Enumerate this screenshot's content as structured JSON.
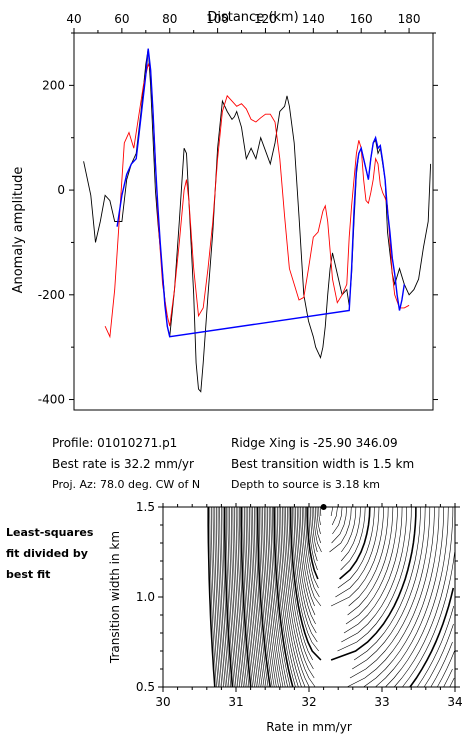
{
  "chart_data": [
    {
      "type": "line",
      "xlabel": "Distance (km)",
      "ylabel": "Anomaly amplitude",
      "xlim": [
        40,
        190
      ],
      "ylim": [
        -420,
        300
      ],
      "xticks": [
        40,
        60,
        80,
        100,
        120,
        140,
        160,
        180
      ],
      "yticks": [
        200,
        0,
        -200,
        -400
      ],
      "grid": false,
      "series": [
        {
          "color": "#000000",
          "x": [
            44,
            47,
            49,
            51,
            53,
            55,
            57,
            60,
            62,
            64,
            66,
            68,
            70,
            71,
            72,
            73,
            74,
            75,
            76,
            77,
            78,
            79,
            80,
            82,
            84,
            86,
            87,
            88,
            89,
            90,
            91,
            92,
            93,
            94,
            96,
            98,
            100,
            102,
            104,
            106,
            107,
            108,
            110,
            112,
            114,
            116,
            118,
            120,
            122,
            124,
            126,
            128,
            129,
            130,
            132,
            134,
            136,
            138,
            140,
            141,
            142,
            143,
            144,
            145,
            146,
            147,
            148,
            150,
            152,
            154,
            155,
            156,
            157,
            158,
            159,
            160,
            161,
            162,
            163,
            164,
            165,
            166,
            167,
            168,
            169,
            170,
            171,
            172,
            173,
            174,
            176,
            178,
            180,
            182,
            184,
            186,
            188,
            189
          ],
          "y": [
            55,
            -10,
            -100,
            -60,
            -10,
            -20,
            -60,
            -60,
            20,
            50,
            70,
            150,
            240,
            270,
            200,
            100,
            0,
            -60,
            -110,
            -160,
            -210,
            -260,
            -280,
            -190,
            -60,
            80,
            70,
            -20,
            -110,
            -200,
            -330,
            -380,
            -385,
            -330,
            -200,
            -80,
            80,
            170,
            150,
            135,
            140,
            150,
            120,
            60,
            80,
            60,
            100,
            75,
            50,
            90,
            150,
            160,
            180,
            160,
            90,
            -50,
            -200,
            -250,
            -280,
            -300,
            -310,
            -320,
            -300,
            -260,
            -200,
            -150,
            -120,
            -160,
            -200,
            -190,
            -220,
            -160,
            -60,
            30,
            70,
            80,
            60,
            40,
            20,
            60,
            90,
            95,
            70,
            80,
            50,
            20,
            -80,
            -120,
            -160,
            -180,
            -150,
            -180,
            -200,
            -190,
            -170,
            -110,
            -60,
            50
          ]
        },
        {
          "color": "#ff0000",
          "x": [
            53,
            55,
            57,
            59,
            61,
            63,
            65,
            67,
            69,
            71,
            72,
            73,
            74,
            75,
            77,
            79,
            80,
            82,
            84,
            86,
            87,
            88,
            90,
            92,
            94,
            96,
            98,
            100,
            102,
            104,
            106,
            108,
            110,
            112,
            114,
            116,
            118,
            120,
            122,
            124,
            126,
            128,
            130,
            132,
            134,
            136,
            138,
            140,
            142,
            144,
            145,
            146,
            148,
            150,
            152,
            154,
            155,
            156,
            157,
            158,
            159,
            160,
            161,
            162,
            163,
            164,
            165,
            166,
            167,
            168,
            169,
            170,
            171,
            172,
            173,
            174,
            176,
            178,
            180
          ],
          "y": [
            -260,
            -280,
            -190,
            -50,
            90,
            110,
            80,
            140,
            200,
            240,
            230,
            150,
            60,
            -50,
            -180,
            -240,
            -260,
            -190,
            -100,
            0,
            20,
            -20,
            -150,
            -240,
            -225,
            -150,
            -60,
            60,
            150,
            180,
            170,
            160,
            165,
            155,
            135,
            130,
            138,
            145,
            145,
            130,
            60,
            -50,
            -150,
            -180,
            -210,
            -205,
            -150,
            -90,
            -80,
            -40,
            -30,
            -60,
            -170,
            -215,
            -200,
            -180,
            -90,
            -30,
            20,
            70,
            95,
            80,
            20,
            -20,
            -25,
            -5,
            20,
            60,
            50,
            10,
            -5,
            -15,
            -30,
            -100,
            -160,
            -200,
            -225,
            -225,
            -220
          ]
        },
        {
          "color": "#0000ff",
          "x": [
            58,
            60,
            62,
            64,
            66,
            68,
            70,
            71,
            72,
            73,
            74,
            75,
            76,
            77,
            78,
            79,
            80,
            155,
            156,
            157,
            158,
            159,
            160,
            161,
            162,
            163,
            164,
            165,
            166,
            167,
            168,
            169,
            170,
            171,
            172,
            173,
            174,
            175,
            176,
            177,
            178
          ],
          "y": [
            -70,
            -10,
            30,
            50,
            60,
            140,
            220,
            270,
            230,
            150,
            50,
            -30,
            -100,
            -160,
            -220,
            -260,
            -280,
            -230,
            -150,
            -40,
            40,
            70,
            80,
            60,
            40,
            20,
            60,
            90,
            100,
            80,
            85,
            55,
            20,
            -40,
            -80,
            -130,
            -160,
            -200,
            -230,
            -210,
            -180
          ]
        }
      ]
    },
    {
      "type": "contour",
      "xlabel": "Rate in mm/yr",
      "ylabel": "Transition width in km",
      "xlim": [
        30,
        34
      ],
      "ylim": [
        0.5,
        1.5
      ],
      "xticks": [
        30,
        31,
        32,
        33,
        34
      ],
      "yticks": [
        1.5,
        1.0,
        0.5
      ],
      "best_fit": {
        "rate": 32.2,
        "width": 1.5
      }
    }
  ],
  "info": {
    "profile": "Profile: 01010271.p1",
    "ridge": "Ridge Xing is -25.90 346.09",
    "rate": "Best rate is 32.2 mm/yr",
    "width": "Best transition width is 1.5 km",
    "az": "Proj. Az: 78.0 deg. CW of N",
    "depth": "Depth to source is   3.18 km"
  },
  "side_caption": [
    "Least-squares",
    "fit divided by",
    "best fit"
  ]
}
